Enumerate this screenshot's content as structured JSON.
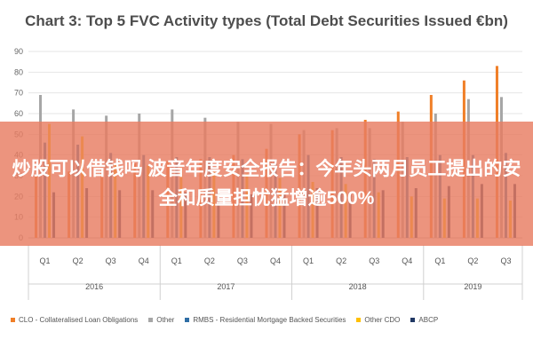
{
  "chart_data": {
    "type": "bar",
    "title": "Chart 3: Top 5 FVC Activity types (Total Debt Securities Issued €bn)",
    "ylim": [
      0,
      90
    ],
    "yticks": [
      0,
      10,
      20,
      30,
      40,
      50,
      60,
      70,
      80,
      90
    ],
    "grid": true,
    "legend_position": "bottom",
    "categories": [
      "Q1",
      "Q2",
      "Q3",
      "Q4",
      "Q1",
      "Q2",
      "Q3",
      "Q4",
      "Q1",
      "Q2",
      "Q3",
      "Q4",
      "Q1",
      "Q2",
      "Q3"
    ],
    "year_groups": [
      {
        "label": "2016",
        "count": 4
      },
      {
        "label": "2017",
        "count": 4
      },
      {
        "label": "2018",
        "count": 4
      },
      {
        "label": "2019",
        "count": 3
      }
    ],
    "series": [
      {
        "name": "CLO - Collateralised Loan Obligations",
        "color": "#f07f28",
        "values": [
          30,
          32,
          34,
          36,
          37,
          38,
          40,
          43,
          50,
          52,
          57,
          61,
          69,
          76,
          83
        ]
      },
      {
        "name": "Other",
        "color": "#a6a6a6",
        "values": [
          69,
          62,
          59,
          60,
          62,
          58,
          56,
          55,
          52,
          53,
          53,
          56,
          60,
          67,
          68
        ]
      },
      {
        "name": "RMBS - Residential Mortgage Backed Securities",
        "color": "#2f6ea5",
        "values": [
          46,
          45,
          41,
          40,
          39,
          39,
          38,
          38,
          40,
          39,
          38,
          39,
          40,
          40,
          41
        ]
      },
      {
        "name": "Other CDO",
        "color": "#ffc000",
        "values": [
          55,
          49,
          36,
          35,
          34,
          32,
          31,
          29,
          27,
          26,
          22,
          20,
          19,
          19,
          18
        ]
      },
      {
        "name": "ABCP",
        "color": "#203864",
        "values": [
          22,
          24,
          23,
          23,
          22,
          22,
          21,
          21,
          24,
          22,
          23,
          24,
          25,
          26,
          26
        ]
      }
    ]
  },
  "overlay": {
    "text": "炒股可以借钱吗 波音年度安全报告：今年头两月员工提出的安全和质量担忧猛增逾500%"
  }
}
